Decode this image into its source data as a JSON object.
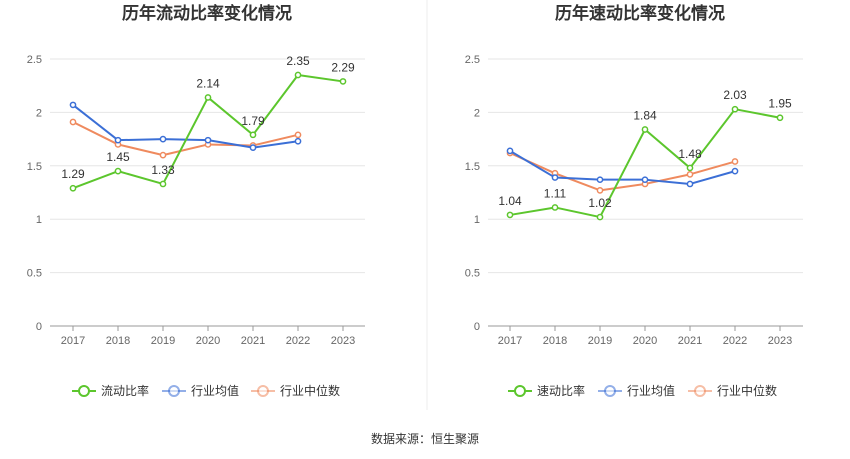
{
  "source_text": "数据来源：恒生聚源",
  "colors": {
    "primary": "#5cc62d",
    "average": "#3b6fd6",
    "median": "#ef8a5e",
    "grid": "#e6e6e6",
    "axis": "#999999"
  },
  "chart_data": [
    {
      "type": "line",
      "title": "历年流动比率变化情况",
      "categories": [
        "2017",
        "2018",
        "2019",
        "2020",
        "2021",
        "2022",
        "2023"
      ],
      "ylim": [
        0,
        2.5
      ],
      "yticks": [
        "0",
        "0.5",
        "1",
        "1.5",
        "2",
        "2.5"
      ],
      "grid": true,
      "legend_position": "bottom",
      "series": [
        {
          "name": "流动比率",
          "values": [
            1.29,
            1.45,
            1.33,
            2.14,
            1.79,
            2.35,
            2.29
          ],
          "labeled": true,
          "labels": [
            "1.29",
            "1.45",
            "1.33",
            "2.14",
            "1.79",
            "2.35",
            "2.29"
          ]
        },
        {
          "name": "行业均值",
          "values": [
            2.07,
            1.74,
            1.75,
            1.74,
            1.67,
            1.73,
            null
          ],
          "labeled": false
        },
        {
          "name": "行业中位数",
          "values": [
            1.91,
            1.7,
            1.6,
            1.7,
            1.69,
            1.79,
            null
          ],
          "labeled": false
        }
      ]
    },
    {
      "type": "line",
      "title": "历年速动比率变化情况",
      "categories": [
        "2017",
        "2018",
        "2019",
        "2020",
        "2021",
        "2022",
        "2023"
      ],
      "ylim": [
        0,
        2.5
      ],
      "yticks": [
        "0",
        "0.5",
        "1",
        "1.5",
        "2",
        "2.5"
      ],
      "grid": true,
      "legend_position": "bottom",
      "series": [
        {
          "name": "速动比率",
          "values": [
            1.04,
            1.11,
            1.02,
            1.84,
            1.48,
            2.03,
            1.95
          ],
          "labeled": true,
          "labels": [
            "1.04",
            "1.11",
            "1.02",
            "1.84",
            "1.48",
            "2.03",
            "1.95"
          ]
        },
        {
          "name": "行业均值",
          "values": [
            1.64,
            1.39,
            1.37,
            1.37,
            1.33,
            1.45,
            null
          ],
          "labeled": false
        },
        {
          "name": "行业中位数",
          "values": [
            1.62,
            1.43,
            1.27,
            1.33,
            1.42,
            1.54,
            null
          ],
          "labeled": false
        }
      ]
    }
  ]
}
